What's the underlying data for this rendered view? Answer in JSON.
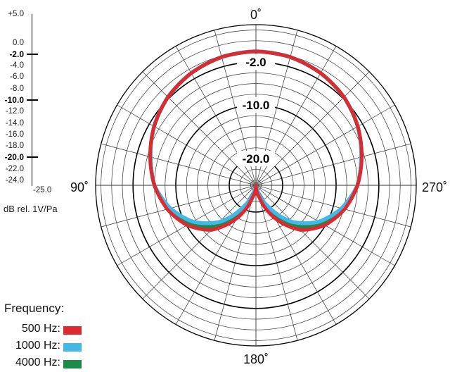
{
  "chart_data": {
    "type": "polar",
    "angle_labels": [
      {
        "angle": 0,
        "text": "0˚"
      },
      {
        "angle": 90,
        "text": "90˚"
      },
      {
        "angle": 180,
        "text": "180˚"
      },
      {
        "angle": 270,
        "text": "270˚"
      }
    ],
    "angle_direction": "counterclockwise",
    "radial_range_db": [
      -25,
      5
    ],
    "radial_ring_step_db": 2,
    "radial_labels": [
      {
        "db": -2,
        "text": "-2.0"
      },
      {
        "db": -10,
        "text": "-10.0"
      },
      {
        "db": -20,
        "text": "-20.0"
      }
    ],
    "angular_grid_step_deg": 15,
    "scale_ticks": [
      "+5.0",
      "0.0",
      "-2.0",
      "-4.0",
      "-6.0",
      "-8.0",
      "-10.0",
      "-12.0",
      "-14.0",
      "-16.0",
      "-18.0",
      "-20.0",
      "-22.0",
      "-24.0"
    ],
    "scale_tick_values": [
      5,
      0,
      -2,
      -4,
      -6,
      -8,
      -10,
      -12,
      -14,
      -16,
      -18,
      -20,
      -22,
      -24
    ],
    "scale_major_ticks": [
      "-2.0",
      "-10.0",
      "-20.0"
    ],
    "scale_bottom": "-25.0",
    "unit_label": "dB rel. 1V/Pa",
    "legend_title": "Frequency:",
    "series": [
      {
        "name": "4000 Hz:",
        "color": "#1e8a4a",
        "angles": [
          0,
          15,
          30,
          45,
          60,
          75,
          90,
          105,
          120,
          135,
          150,
          165,
          180,
          195,
          210,
          225,
          240,
          255,
          270,
          285,
          300,
          315,
          330,
          345
        ],
        "values": [
          0,
          -0.2,
          -0.8,
          -1.7,
          -3.0,
          -4.6,
          -6.0,
          -8.0,
          -10.6,
          -14.1,
          -19.0,
          -23.5,
          -25,
          -23.5,
          -19.0,
          -14.1,
          -10.6,
          -8.0,
          -6.0,
          -4.6,
          -3.0,
          -1.7,
          -0.8,
          -0.2
        ]
      },
      {
        "name": "1000 Hz:",
        "color": "#43b8e8",
        "angles": [
          0,
          15,
          30,
          45,
          60,
          75,
          90,
          105,
          120,
          135,
          150,
          165,
          180,
          195,
          210,
          225,
          240,
          255,
          270,
          285,
          300,
          315,
          330,
          345
        ],
        "values": [
          0,
          -0.2,
          -0.8,
          -1.7,
          -3.0,
          -4.6,
          -6.0,
          -8.4,
          -11.4,
          -15.3,
          -20.4,
          -24.0,
          -25,
          -24.0,
          -20.4,
          -15.3,
          -11.4,
          -8.4,
          -6.0,
          -4.6,
          -3.0,
          -1.7,
          -0.8,
          -0.2
        ]
      },
      {
        "name": "500 Hz:",
        "color": "#dc2a30",
        "angles": [
          0,
          15,
          30,
          45,
          60,
          75,
          90,
          105,
          120,
          135,
          150,
          165,
          180,
          195,
          210,
          225,
          240,
          255,
          270,
          285,
          300,
          315,
          330,
          345
        ],
        "values": [
          0,
          -0.2,
          -0.8,
          -1.7,
          -3.0,
          -4.5,
          -6.0,
          -7.8,
          -10.1,
          -13.2,
          -17.9,
          -22.8,
          -25,
          -22.8,
          -17.9,
          -13.2,
          -10.1,
          -7.8,
          -6.0,
          -4.5,
          -3.0,
          -1.7,
          -0.8,
          -0.2
        ]
      }
    ]
  }
}
